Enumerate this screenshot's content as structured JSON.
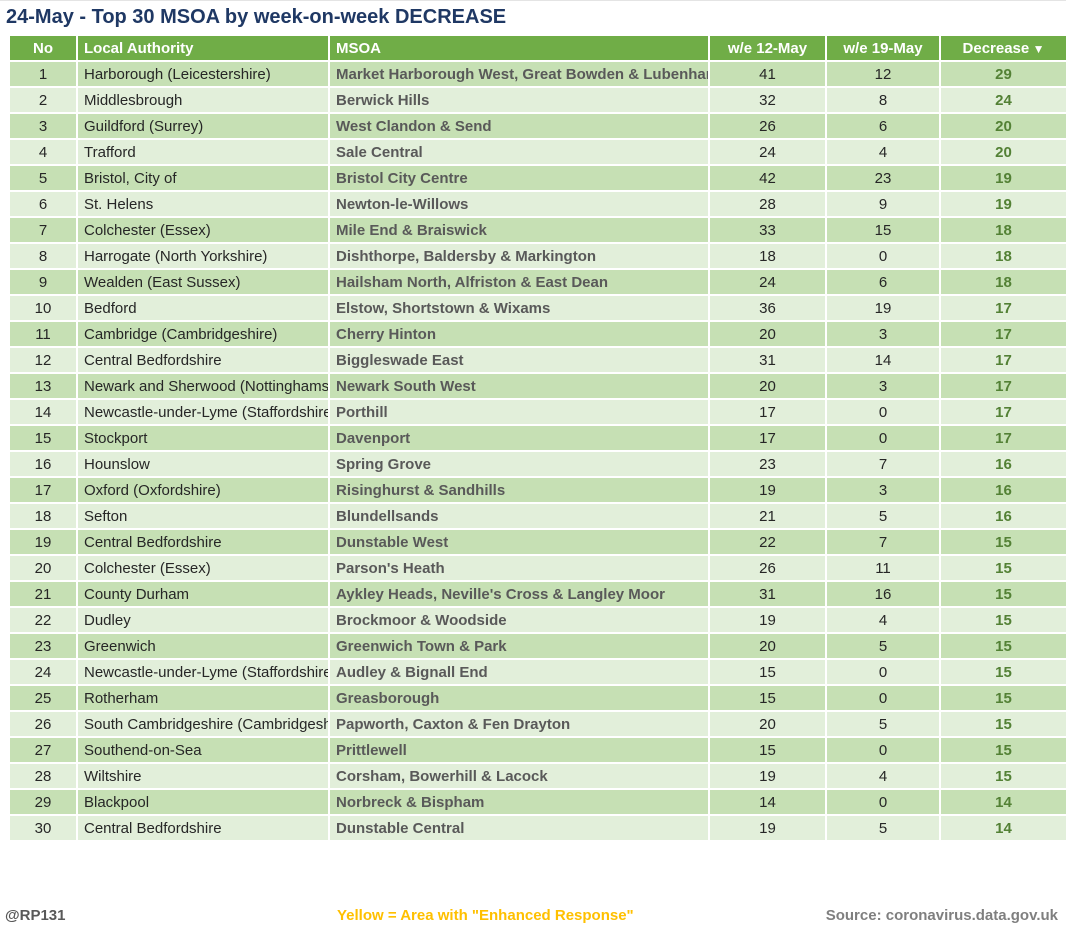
{
  "title": "24-May - Top 30 MSOA by week-on-week DECREASE",
  "colors": {
    "title_text": "#1F3864",
    "header_bg": "#70AD47",
    "row_odd": "#C6E0B4",
    "row_even": "#E2EFDA",
    "body_text": "#262626",
    "msoa_text": "#595959",
    "decrease_text": "#538135",
    "footer_handle": "#595959",
    "footer_source": "#7F7F7F",
    "highlight_yellow": "#FFC000"
  },
  "chart_data": {
    "type": "table",
    "title": "24-May - Top 30 MSOA by week-on-week DECREASE",
    "columns": [
      "No",
      "Local Authority",
      "MSOA",
      "w/e 12-May",
      "w/e 19-May",
      "Decrease"
    ],
    "sort": {
      "column": "Decrease",
      "direction": "desc",
      "icon": "▼"
    },
    "rows": [
      [
        1,
        "Harborough (Leicestershire)",
        "Market Harborough West, Great Bowden & Lubenham",
        41,
        12,
        29
      ],
      [
        2,
        "Middlesbrough",
        "Berwick Hills",
        32,
        8,
        24
      ],
      [
        3,
        "Guildford (Surrey)",
        "West Clandon & Send",
        26,
        6,
        20
      ],
      [
        4,
        "Trafford",
        "Sale Central",
        24,
        4,
        20
      ],
      [
        5,
        "Bristol, City of",
        "Bristol City Centre",
        42,
        23,
        19
      ],
      [
        6,
        "St. Helens",
        "Newton-le-Willows",
        28,
        9,
        19
      ],
      [
        7,
        "Colchester (Essex)",
        "Mile End & Braiswick",
        33,
        15,
        18
      ],
      [
        8,
        "Harrogate (North Yorkshire)",
        "Dishthorpe, Baldersby & Markington",
        18,
        0,
        18
      ],
      [
        9,
        "Wealden (East Sussex)",
        "Hailsham North, Alfriston & East Dean",
        24,
        6,
        18
      ],
      [
        10,
        "Bedford",
        "Elstow, Shortstown & Wixams",
        36,
        19,
        17
      ],
      [
        11,
        "Cambridge (Cambridgeshire)",
        "Cherry Hinton",
        20,
        3,
        17
      ],
      [
        12,
        "Central Bedfordshire",
        "Biggleswade East",
        31,
        14,
        17
      ],
      [
        13,
        "Newark and Sherwood (Nottinghamshire)",
        "Newark South West",
        20,
        3,
        17
      ],
      [
        14,
        "Newcastle-under-Lyme (Staffordshire)",
        "Porthill",
        17,
        0,
        17
      ],
      [
        15,
        "Stockport",
        "Davenport",
        17,
        0,
        17
      ],
      [
        16,
        "Hounslow",
        "Spring Grove",
        23,
        7,
        16
      ],
      [
        17,
        "Oxford (Oxfordshire)",
        "Risinghurst & Sandhills",
        19,
        3,
        16
      ],
      [
        18,
        "Sefton",
        "Blundellsands",
        21,
        5,
        16
      ],
      [
        19,
        "Central Bedfordshire",
        "Dunstable West",
        22,
        7,
        15
      ],
      [
        20,
        "Colchester (Essex)",
        "Parson's Heath",
        26,
        11,
        15
      ],
      [
        21,
        "County Durham",
        "Aykley Heads, Neville's Cross & Langley Moor",
        31,
        16,
        15
      ],
      [
        22,
        "Dudley",
        "Brockmoor & Woodside",
        19,
        4,
        15
      ],
      [
        23,
        "Greenwich",
        "Greenwich Town & Park",
        20,
        5,
        15
      ],
      [
        24,
        "Newcastle-under-Lyme (Staffordshire)",
        "Audley & Bignall End",
        15,
        0,
        15
      ],
      [
        25,
        "Rotherham",
        "Greasborough",
        15,
        0,
        15
      ],
      [
        26,
        "South Cambridgeshire (Cambridgeshire)",
        "Papworth, Caxton & Fen Drayton",
        20,
        5,
        15
      ],
      [
        27,
        "Southend-on-Sea",
        "Prittlewell",
        15,
        0,
        15
      ],
      [
        28,
        "Wiltshire",
        "Corsham, Bowerhill & Lacock",
        19,
        4,
        15
      ],
      [
        29,
        "Blackpool",
        "Norbreck & Bispham",
        14,
        0,
        14
      ],
      [
        30,
        "Central Bedfordshire",
        "Dunstable Central",
        19,
        5,
        14
      ]
    ]
  },
  "footer": {
    "handle": "@RP131",
    "note": "Yellow = Area with \"Enhanced Response\"",
    "source": "Source: coronavirus.data.gov.uk"
  }
}
